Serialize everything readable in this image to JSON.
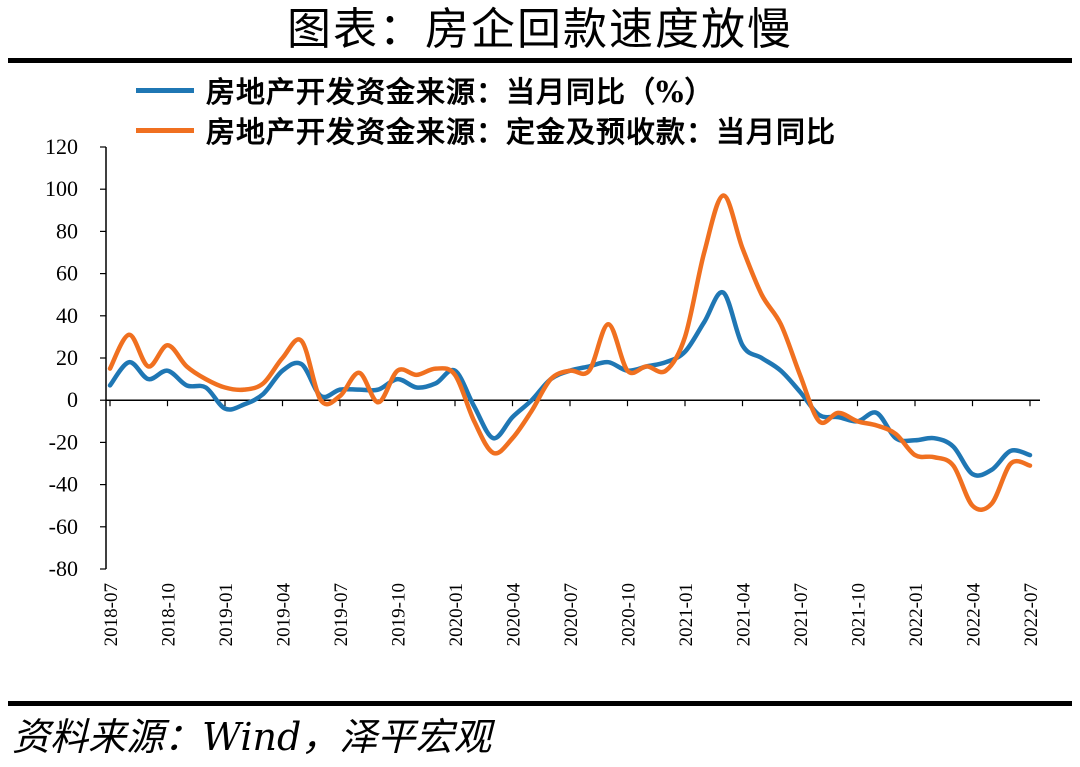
{
  "header": {
    "title": "图表：房企回款速度放慢"
  },
  "footer": {
    "source": "资料来源：Wind，泽平宏观"
  },
  "chart_data": {
    "type": "line",
    "title": "图表：房企回款速度放慢",
    "xlabel": "",
    "ylabel": "",
    "ylim": [
      -80,
      120
    ],
    "yticks": [
      "120",
      "100",
      "80",
      "60",
      "40",
      "20",
      "0",
      "-20",
      "-40",
      "-60",
      "-80"
    ],
    "grid": false,
    "legend_position": "top",
    "x_tick_labels": [
      "2018-07",
      "2018-10",
      "2019-01",
      "2019-04",
      "2019-07",
      "2019-10",
      "2020-01",
      "2020-04",
      "2020-07",
      "2020-10",
      "2021-01",
      "2021-04",
      "2021-07",
      "2021-10",
      "2022-01",
      "2022-04",
      "2022-07"
    ],
    "x": [
      "2018-07",
      "2018-08",
      "2018-09",
      "2018-10",
      "2018-11",
      "2018-12",
      "2019-01",
      "2019-02",
      "2019-03",
      "2019-04",
      "2019-05",
      "2019-06",
      "2019-07",
      "2019-08",
      "2019-09",
      "2019-10",
      "2019-11",
      "2019-12",
      "2020-01",
      "2020-02",
      "2020-03",
      "2020-04",
      "2020-05",
      "2020-06",
      "2020-07",
      "2020-08",
      "2020-09",
      "2020-10",
      "2020-11",
      "2020-12",
      "2021-01",
      "2021-02",
      "2021-03",
      "2021-04",
      "2021-05",
      "2021-06",
      "2021-07",
      "2021-08",
      "2021-09",
      "2021-10",
      "2021-11",
      "2021-12",
      "2022-01",
      "2022-02",
      "2022-03",
      "2022-04",
      "2022-05",
      "2022-06",
      "2022-07"
    ],
    "series": [
      {
        "name": "房地产开发资金来源：当月同比（%）",
        "color": "#1f77b4",
        "values": [
          7,
          18,
          10,
          14,
          7,
          6,
          -4,
          -2,
          3,
          14,
          17,
          2,
          5,
          5,
          5,
          10,
          6,
          8,
          14,
          -3,
          -18,
          -8,
          0,
          10,
          14,
          16,
          18,
          14,
          16,
          18,
          23,
          37,
          51,
          26,
          20,
          14,
          4,
          -7,
          -8,
          -10,
          -6,
          -18,
          -19,
          -18,
          -22,
          -35,
          -33,
          -24,
          -26
        ]
      },
      {
        "name": "房地产开发资金来源：定金及预收款：当月同比",
        "color": "#f07020",
        "values": [
          15,
          31,
          16,
          26,
          16,
          10,
          6,
          5,
          8,
          20,
          28,
          0,
          2,
          13,
          -1,
          14,
          12,
          15,
          12,
          -10,
          -25,
          -18,
          -5,
          10,
          14,
          14,
          36,
          14,
          16,
          14,
          30,
          70,
          97,
          72,
          50,
          36,
          12,
          -10,
          -6,
          -10,
          -12,
          -16,
          -26,
          -27,
          -31,
          -50,
          -49,
          -30,
          -31
        ]
      }
    ]
  }
}
